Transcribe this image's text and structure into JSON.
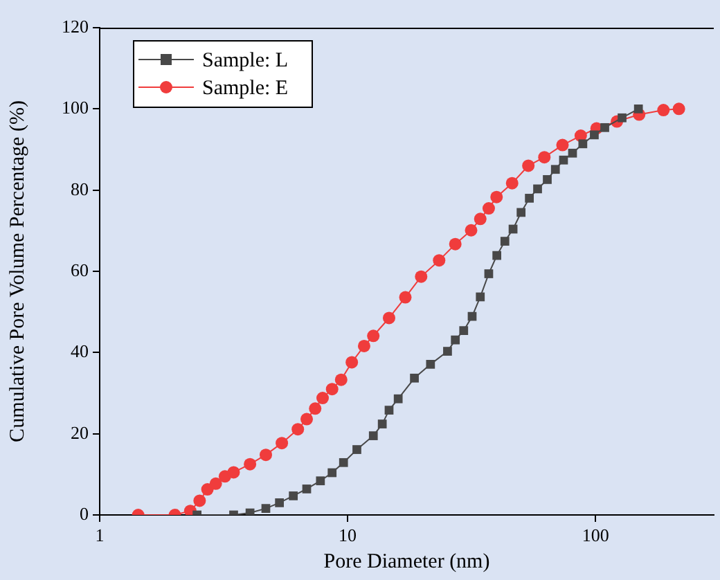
{
  "chart_data": {
    "type": "line",
    "xlabel": "Pore Diameter (nm)",
    "ylabel": "Cumulative Pore Volume Percentage (%)",
    "log": "x",
    "xlim": [
      1,
      300
    ],
    "xticks": [
      1,
      10,
      100
    ],
    "ylim": [
      0,
      120
    ],
    "yticks": [
      0,
      20,
      40,
      60,
      80,
      100,
      120
    ],
    "grid": false,
    "legend": "top left",
    "line_style": "solid",
    "series": [
      {
        "name": "Sample: L",
        "color": "#484848",
        "marker": "square",
        "x": [
          2.47,
          3.47,
          4.04,
          4.68,
          5.31,
          6.04,
          6.84,
          7.77,
          8.66,
          9.63,
          10.9,
          12.7,
          13.8,
          14.7,
          16.0,
          18.6,
          21.6,
          25.3,
          27.2,
          29.4,
          31.8,
          34.3,
          37.1,
          40.0,
          43.1,
          46.5,
          50.1,
          54.1,
          58.4,
          63.9,
          68.9,
          74.3,
          80.8,
          88.9,
          98.9,
          109,
          128,
          149
        ],
        "values": [
          0,
          0,
          0.5,
          1.6,
          3.0,
          4.7,
          6.4,
          8.4,
          10.4,
          12.9,
          16.1,
          19.5,
          22.4,
          25.8,
          28.6,
          33.7,
          37.1,
          40.3,
          43.1,
          45.4,
          48.9,
          53.7,
          59.4,
          63.9,
          67.4,
          70.4,
          74.5,
          78.0,
          80.3,
          82.6,
          85.1,
          87.4,
          89.1,
          91.4,
          93.6,
          95.4,
          97.8,
          100
        ]
      },
      {
        "name": "Sample: E",
        "color": "#f03c3c",
        "marker": "circle",
        "x": [
          1.43,
          2.01,
          2.32,
          2.53,
          2.72,
          2.94,
          3.2,
          3.47,
          4.04,
          4.68,
          5.43,
          6.3,
          6.84,
          7.4,
          7.93,
          8.66,
          9.42,
          10.4,
          11.66,
          12.7,
          14.7,
          17.1,
          19.8,
          23.4,
          27.2,
          31.5,
          34.3,
          37.1,
          39.9,
          46.1,
          53.6,
          62.2,
          73.6,
          87.2,
          101,
          122,
          150,
          188,
          217
        ],
        "values": [
          0,
          0,
          1,
          3.5,
          6.3,
          7.7,
          9.5,
          10.5,
          12.5,
          14.8,
          17.7,
          21.1,
          23.6,
          26.2,
          28.8,
          31.0,
          33.3,
          37.6,
          41.6,
          44.1,
          48.5,
          53.6,
          58.7,
          62.7,
          66.7,
          70.1,
          72.9,
          75.5,
          78.3,
          81.7,
          86.0,
          88.1,
          91.1,
          93.4,
          95.2,
          96.9,
          98.6,
          99.7,
          100
        ]
      }
    ]
  }
}
